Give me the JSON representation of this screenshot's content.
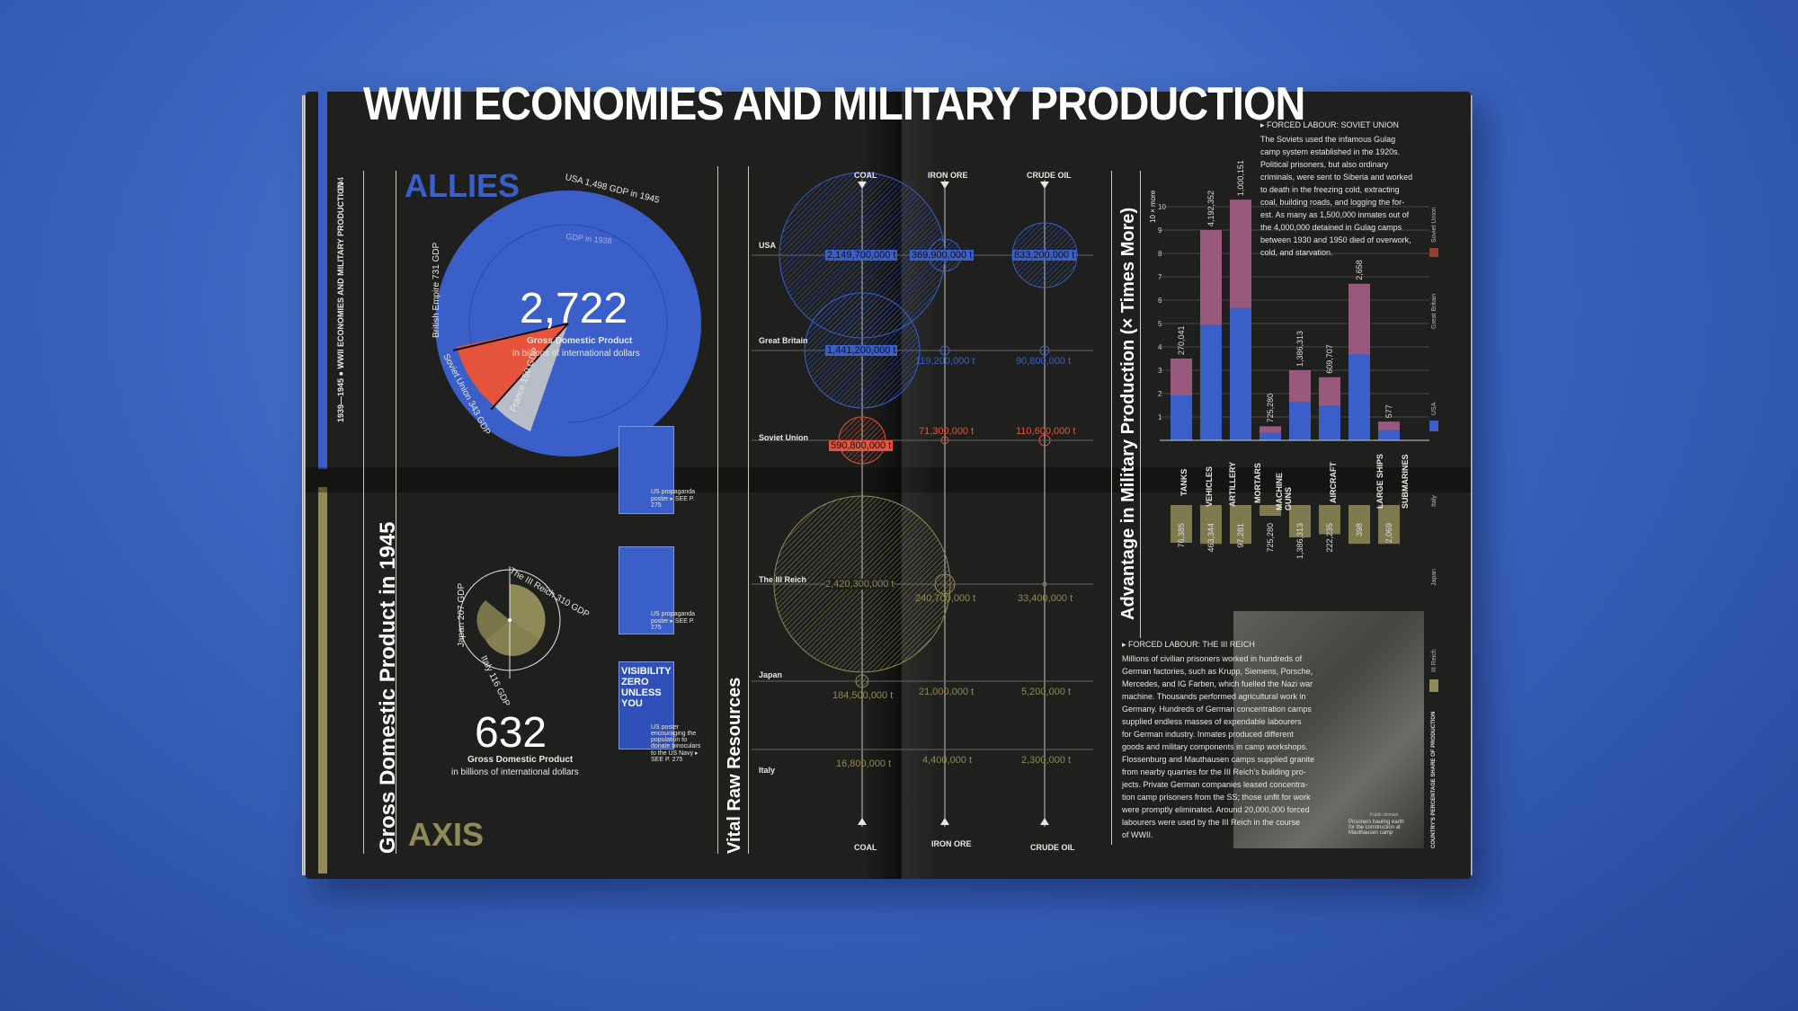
{
  "title": "WWII ECONOMIES AND MILITARY PRODUCTION",
  "page_number": "094",
  "running_header": "1939—1945 ● WWII ECONOMIES AND MILITARY PRODUCTION",
  "colors": {
    "allies": "#3b5fc9",
    "soviet": "#e5533d",
    "axis": "#8f8b58",
    "paper": "#1f1f1d"
  },
  "gdp": {
    "section_title": "Gross Domestic Product in 1945",
    "allies": {
      "heading": "ALLIES",
      "total": "2,722",
      "caption1": "Gross Domestic Product",
      "caption2": "in billions of international dollars",
      "usa_label": "USA 1,498 GDP in 1945",
      "gdp1938": "GDP in 1938",
      "british": "British Empire 731 GDP",
      "soviet": "Soviet Union 343 GDP",
      "france": "France 150 GDP"
    },
    "axis": {
      "heading": "AXIS",
      "total": "632",
      "caption1": "Gross Domestic Product",
      "caption2": "in billions of international dollars",
      "reich": "The III Reich 310 GDP",
      "japan": "Japan 207 GDP",
      "italy": "Italy 116 GDP"
    },
    "posters": [
      {
        "caption": "US propaganda poster ▸ SEE P. 275"
      },
      {
        "caption": "US propaganda poster ▸ SEE P. 275"
      },
      {
        "caption": "US poster encouraging the population to donate binoculars to the US Navy ▸ SEE P. 275",
        "poster_text": "VISIBILITY ZERO UNLESS YOU"
      }
    ]
  },
  "resources": {
    "section_title": "Vital Raw Resources",
    "columns": [
      "COAL",
      "IRON ORE",
      "CRUDE OIL"
    ],
    "rows": [
      {
        "country": "USA",
        "coal": "2,149,700,000 t",
        "iron": "369,900,000 t",
        "oil": "833,200,000 t"
      },
      {
        "country": "Great Britain",
        "coal": "1,441,200,000 t",
        "iron": "119,200,000 t",
        "oil": "90,800,000 t"
      },
      {
        "country": "Soviet Union",
        "coal": "590,800,000 t",
        "iron": "71,300,000 t",
        "oil": "110,600,000 t"
      },
      {
        "country": "The III Reich",
        "coal": "2,420,300,000 t",
        "iron": "240,700,000 t",
        "oil": "33,400,000 t"
      },
      {
        "country": "Japan",
        "coal": "184,500,000 t",
        "iron": "21,000,000 t",
        "oil": "5,200,000 t"
      },
      {
        "country": "Italy",
        "coal": "16,800,000 t",
        "iron": "4,400,000 t",
        "oil": "2,300,000 t"
      }
    ]
  },
  "production": {
    "section_title": "Advantage in Military Production (× Times More)",
    "y_label": "10 × more",
    "categories": [
      "TANKS",
      "VEHICLES",
      "ARTILLERY",
      "MORTARS",
      "MACHINE GUNS",
      "AIRCRAFT",
      "LARGE SHIPS",
      "SUBMARINES"
    ],
    "allies_values": [
      "270,041",
      "4,192,352",
      "1,000,151",
      "725,280",
      "1,386,313",
      "609,707",
      "2,658",
      "577"
    ],
    "axis_values": [
      "76,385",
      "463,344",
      "97,281",
      "725,280",
      "1,386,313",
      "222,235",
      "398",
      "2,069"
    ],
    "legend": [
      "Soviet Union",
      "Great Britain",
      "USA",
      "Italy",
      "Japan",
      "III Reich"
    ],
    "share_label": "COUNTRY'S PERCENTAGE SHARE OF PRODUCTION"
  },
  "chart_data": {
    "type": "bar",
    "categories": [
      "TANKS",
      "VEHICLES",
      "ARTILLERY",
      "MORTARS",
      "MACHINE GUNS",
      "AIRCRAFT",
      "LARGE SHIPS",
      "SUBMARINES"
    ],
    "series": [
      {
        "name": "Allies",
        "values": [
          270041,
          4192352,
          1000151,
          725280,
          1386313,
          609707,
          2658,
          577
        ]
      },
      {
        "name": "Axis",
        "values": [
          76385,
          463344,
          97281,
          725280,
          1386313,
          222235,
          398,
          2069
        ]
      }
    ],
    "ylabel": "Advantage in Military Production (× Times More)",
    "ylim": [
      0,
      10
    ]
  },
  "forced_labour_soviet": {
    "heading": "▸ FORCED LABOUR: SOVIET UNION",
    "body": [
      "The Soviets used the infamous Gulag",
      "camp system established in the 1920s.",
      "Political prisoners, but also ordinary",
      "criminals, were sent to Siberia and worked",
      "to death in the freezing cold, extracting",
      "coal, building roads, and logging the for-",
      "est. As many as 1,500,000 inmates out of",
      "the 4,000,000 detained in Gulag camps",
      "between 1930 and 1950 died of overwork,",
      "cold, and starvation."
    ]
  },
  "forced_labour_reich": {
    "heading": "▸ FORCED LABOUR: THE III REICH",
    "body": [
      "Millions of civilian prisoners worked in hundreds of",
      "German factories, such as Krupp, Siemens, Porsche,",
      "Mercedes, and IG Farben, which fuelled the Nazi war",
      "machine. Thousands performed agricultural work in",
      "Germany. Hundreds of German concentration camps",
      "supplied endless masses of expendable labourers",
      "for German industry. Inmates produced different",
      "goods and military components in camp workshops.",
      "Flossenburg and Mauthausen camps supplied granite",
      "from nearby quarries for the III Reich's building pro-",
      "jects. Private German companies leased concentra-",
      "tion camp prisoners from the SS; those unfit for work",
      "were promptly eliminated. Around 20,000,000 forced",
      "labourers were used by the III Reich in the course",
      "of WWII."
    ],
    "photo_caption": "Prisoners hauling earth for the construction at Mauthausen camp",
    "photo_credit": "Public domain"
  }
}
